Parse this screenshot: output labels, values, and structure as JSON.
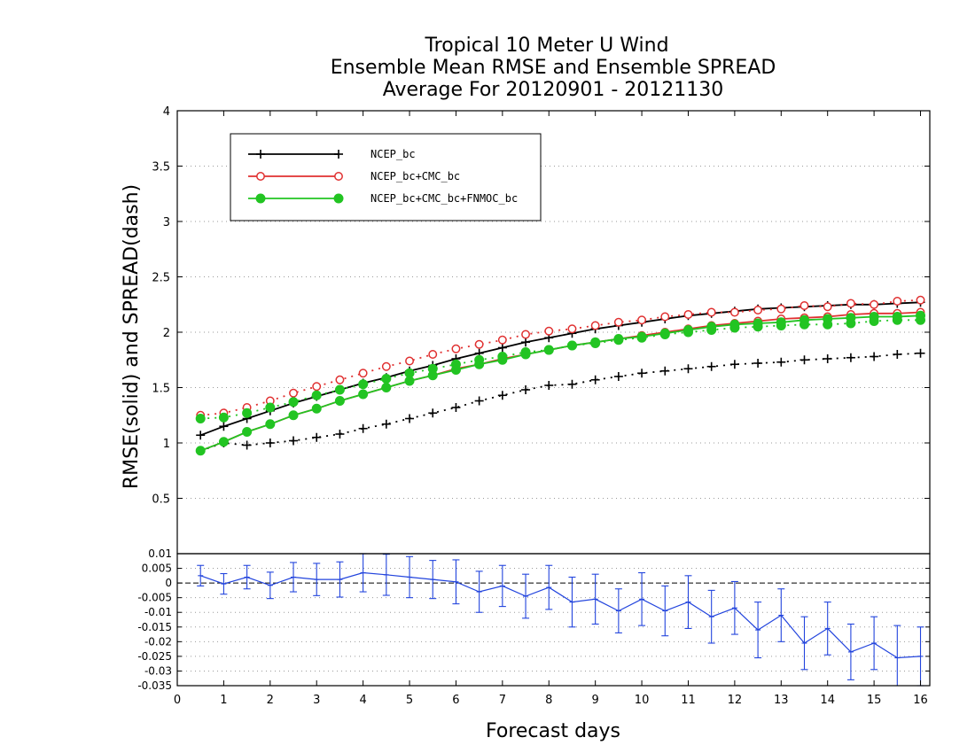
{
  "chart_data": {
    "type": "line",
    "title": [
      "Tropical 10 Meter U Wind",
      "Ensemble Mean RMSE and Ensemble SPREAD",
      "Average For 20120901 - 20121130"
    ],
    "xlabel": "Forecast days",
    "xlim": [
      0,
      16.2
    ],
    "xticks": [
      "0",
      "1",
      "2",
      "3",
      "4",
      "5",
      "6",
      "7",
      "8",
      "9",
      "10",
      "11",
      "12",
      "13",
      "14",
      "15",
      "16"
    ],
    "x": [
      0.5,
      1,
      1.5,
      2,
      2.5,
      3,
      3.5,
      4,
      4.5,
      5,
      5.5,
      6,
      6.5,
      7,
      7.5,
      8,
      8.5,
      9,
      9.5,
      10,
      10.5,
      11,
      11.5,
      12,
      12.5,
      13,
      13.5,
      14,
      14.5,
      15,
      15.5,
      16
    ],
    "upper": {
      "ylabel": "RMSE(solid) and SPREAD(dash)",
      "ylim": [
        0,
        4
      ],
      "yticks": [
        "0.5",
        "1",
        "1.5",
        "2",
        "2.5",
        "3",
        "3.5",
        "4"
      ],
      "grid": true,
      "legend_position": "top-left",
      "series": [
        {
          "name": "NCEP_bc",
          "color": "#000000",
          "marker": "plus",
          "style": "solid",
          "values": [
            1.07,
            1.15,
            1.22,
            1.29,
            1.36,
            1.42,
            1.48,
            1.54,
            1.59,
            1.65,
            1.7,
            1.76,
            1.81,
            1.86,
            1.91,
            1.95,
            1.99,
            2.03,
            2.06,
            2.09,
            2.12,
            2.15,
            2.17,
            2.19,
            2.21,
            2.22,
            2.23,
            2.24,
            2.25,
            2.25,
            2.26,
            2.27
          ]
        },
        {
          "name": "NCEP_bc",
          "color": "#000000",
          "marker": "plus",
          "style": "dash",
          "values": [
            0.93,
            1.0,
            0.98,
            1.0,
            1.02,
            1.05,
            1.08,
            1.13,
            1.17,
            1.22,
            1.27,
            1.32,
            1.38,
            1.43,
            1.48,
            1.52,
            1.53,
            1.57,
            1.6,
            1.63,
            1.65,
            1.67,
            1.69,
            1.71,
            1.72,
            1.73,
            1.75,
            1.76,
            1.77,
            1.78,
            1.8,
            1.81
          ]
        },
        {
          "name": "NCEP_bc+CMC_bc",
          "color": "#e03030",
          "marker": "circle",
          "style": "solid",
          "values": [
            0.93,
            1.01,
            1.1,
            1.17,
            1.25,
            1.31,
            1.38,
            1.44,
            1.5,
            1.56,
            1.61,
            1.67,
            1.71,
            1.76,
            1.8,
            1.84,
            1.88,
            1.91,
            1.94,
            1.97,
            2.0,
            2.03,
            2.06,
            2.08,
            2.1,
            2.12,
            2.13,
            2.14,
            2.16,
            2.17,
            2.17,
            2.18
          ]
        },
        {
          "name": "NCEP_bc+CMC_bc",
          "color": "#e03030",
          "marker": "circle",
          "style": "dash",
          "values": [
            1.25,
            1.27,
            1.32,
            1.38,
            1.45,
            1.51,
            1.57,
            1.63,
            1.69,
            1.74,
            1.8,
            1.85,
            1.89,
            1.93,
            1.98,
            2.01,
            2.03,
            2.06,
            2.09,
            2.11,
            2.14,
            2.16,
            2.18,
            2.18,
            2.2,
            2.21,
            2.24,
            2.23,
            2.26,
            2.25,
            2.28,
            2.29
          ]
        },
        {
          "name": "NCEP_bc+CMC_bc+FNMOC_bc",
          "color": "#22c422",
          "marker": "dot",
          "style": "solid",
          "values": [
            0.93,
            1.01,
            1.1,
            1.17,
            1.25,
            1.31,
            1.38,
            1.44,
            1.5,
            1.56,
            1.61,
            1.66,
            1.71,
            1.75,
            1.8,
            1.84,
            1.88,
            1.91,
            1.94,
            1.96,
            1.99,
            2.02,
            2.05,
            2.07,
            2.08,
            2.09,
            2.11,
            2.12,
            2.13,
            2.14,
            2.14,
            2.15
          ]
        },
        {
          "name": "NCEP_bc+CMC_bc+FNMOC_bc",
          "color": "#22c422",
          "marker": "dot",
          "style": "dash",
          "values": [
            1.22,
            1.23,
            1.27,
            1.32,
            1.37,
            1.43,
            1.48,
            1.53,
            1.58,
            1.63,
            1.67,
            1.71,
            1.75,
            1.78,
            1.82,
            1.84,
            1.88,
            1.9,
            1.93,
            1.95,
            1.98,
            2.0,
            2.02,
            2.04,
            2.05,
            2.06,
            2.07,
            2.07,
            2.08,
            2.1,
            2.11,
            2.11
          ]
        }
      ]
    },
    "lower": {
      "ylim": [
        -0.035,
        0.01
      ],
      "yticks": [
        "0.01",
        "0.005",
        "0",
        "-0.005",
        "-0.01",
        "-0.015",
        "-0.02",
        "-0.025",
        "-0.03",
        "-0.035"
      ],
      "grid": true,
      "series": [
        {
          "color": "#2244dd",
          "style": "solid",
          "errorbars": true,
          "values": [
            0.0025,
            -0.0003,
            0.002,
            -0.0008,
            0.002,
            0.0012,
            0.0012,
            0.0035,
            0.0028,
            0.002,
            0.0012,
            0.0004,
            -0.003,
            -0.001,
            -0.0045,
            -0.0015,
            -0.0065,
            -0.0055,
            -0.0095,
            -0.0055,
            -0.0095,
            -0.0065,
            -0.0115,
            -0.0085,
            -0.016,
            -0.011,
            -0.0205,
            -0.0155,
            -0.0235,
            -0.0205,
            -0.0255,
            -0.025
          ],
          "err": [
            0.0035,
            0.0035,
            0.004,
            0.0045,
            0.005,
            0.0055,
            0.006,
            0.0065,
            0.007,
            0.007,
            0.0065,
            0.0075,
            0.007,
            0.007,
            0.0075,
            0.0075,
            0.0085,
            0.0085,
            0.0075,
            0.009,
            0.0085,
            0.009,
            0.009,
            0.009,
            0.0095,
            0.009,
            0.009,
            0.009,
            0.0095,
            0.009,
            0.011,
            0.01
          ]
        }
      ]
    }
  }
}
